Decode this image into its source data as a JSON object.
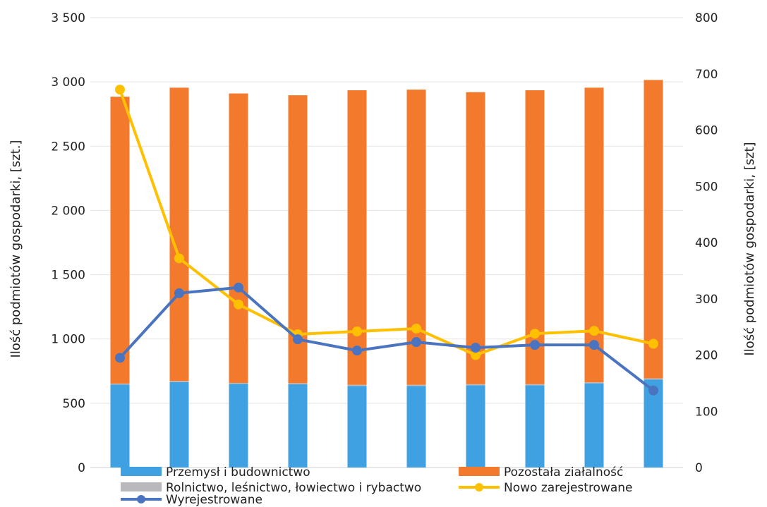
{
  "chart_data": {
    "type": "bar",
    "stacked": true,
    "categories": [
      "",
      "",
      "",
      "",
      "",
      "",
      "",
      "",
      "",
      ""
    ],
    "series": [
      {
        "name": "Przemysł i budownictwo",
        "type": "bar",
        "axis": "left",
        "color": "#3fa0e2",
        "values": [
          645,
          665,
          650,
          648,
          635,
          635,
          640,
          640,
          655,
          685
        ]
      },
      {
        "name": "Rolnictwo, leśnictwo, łowiectwo i rybactwo",
        "type": "bar",
        "axis": "left",
        "color": "#b9b9bd",
        "values": [
          8,
          8,
          8,
          8,
          8,
          8,
          8,
          8,
          8,
          8
        ]
      },
      {
        "name": "Pozostała ziałalność",
        "type": "bar",
        "axis": "left",
        "color": "#f37a2d",
        "values": [
          2232,
          2282,
          2252,
          2240,
          2292,
          2297,
          2272,
          2287,
          2292,
          2322
        ]
      },
      {
        "name": "Nowo zarejestrowane",
        "type": "line",
        "axis": "right",
        "color": "#ffc000",
        "values": [
          672,
          372,
          290,
          237,
          242,
          247,
          200,
          238,
          243,
          220
        ]
      },
      {
        "name": "Wyrejestrowane",
        "type": "line",
        "axis": "right",
        "color": "#4a74c0",
        "values": [
          195,
          310,
          320,
          228,
          208,
          223,
          213,
          218,
          218,
          137
        ]
      }
    ],
    "y_left": {
      "label": "Ilość podmiotów gospodarki, [szt.]",
      "min": 0,
      "max": 3500,
      "ticks": [
        0,
        500,
        1000,
        1500,
        2000,
        2500,
        3000,
        3500
      ],
      "tick_labels": [
        "0",
        "500",
        "1 000",
        "1 500",
        "2 000",
        "2 500",
        "3 000",
        "3 500"
      ]
    },
    "y_right": {
      "label": "Ilość podmiotów gospodarki, [szt]",
      "min": 0,
      "max": 800,
      "ticks": [
        0,
        100,
        200,
        300,
        400,
        500,
        600,
        700,
        800
      ],
      "tick_labels": [
        "0",
        "100",
        "200",
        "300",
        "400",
        "500",
        "600",
        "700",
        "800"
      ]
    },
    "grid": true,
    "legend_position": "bottom"
  }
}
